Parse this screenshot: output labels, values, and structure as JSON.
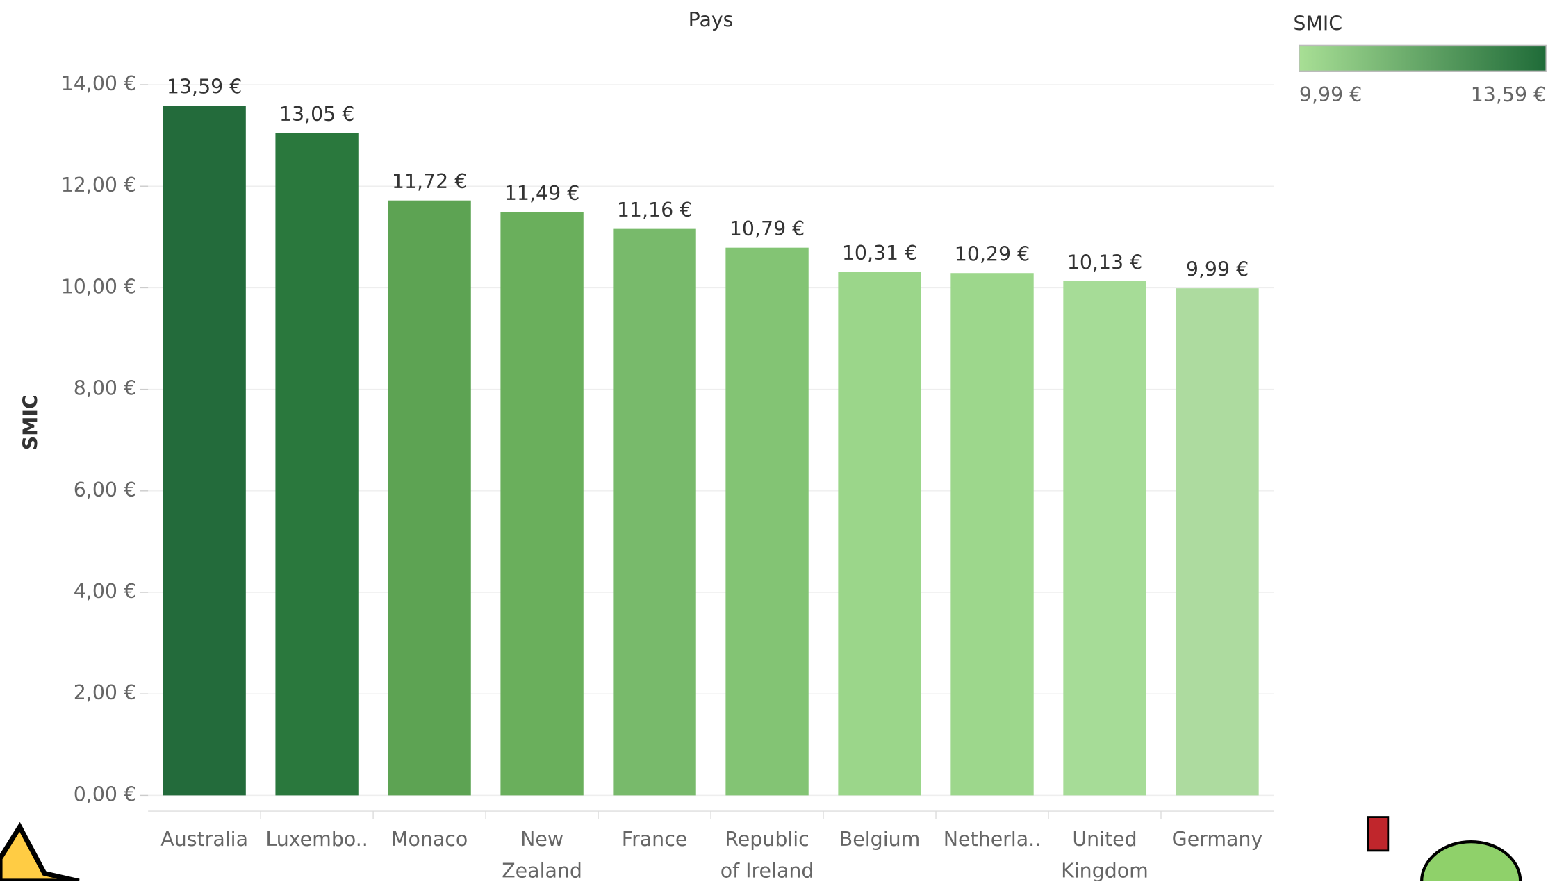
{
  "chart_data": {
    "type": "bar",
    "title": "Pays",
    "y_label": "SMIC",
    "categories": [
      "Australia",
      "Luxembo..",
      "Monaco",
      "New\nZealand",
      "France",
      "Republic\nof Ireland",
      "Belgium",
      "Netherla..",
      "United\nKingdom",
      "Germany"
    ],
    "values": [
      13.59,
      13.05,
      11.72,
      11.49,
      11.16,
      10.79,
      10.31,
      10.29,
      10.13,
      9.99
    ],
    "value_labels": [
      "13,59 €",
      "13,05 €",
      "11,72 €",
      "11,49 €",
      "11,16 €",
      "10,79 €",
      "10,31 €",
      "10,29 €",
      "10,13 €",
      "9,99 €"
    ],
    "colors": [
      "#236b3b",
      "#2a783d",
      "#5da353",
      "#6aaf5c",
      "#78ba6b",
      "#83c474",
      "#9bd68a",
      "#9dd78c",
      "#a6dc97",
      "#addb9f"
    ],
    "ylim": [
      -0.31,
      14.93
    ],
    "yticks": [
      {
        "value": 0,
        "label": "0,00 €"
      },
      {
        "value": 2,
        "label": "2,00 €"
      },
      {
        "value": 4,
        "label": "4,00 €"
      },
      {
        "value": 6,
        "label": "6,00 €"
      },
      {
        "value": 8,
        "label": "8,00 €"
      },
      {
        "value": 10,
        "label": "10,00 €"
      },
      {
        "value": 12,
        "label": "12,00 €"
      },
      {
        "value": 14,
        "label": "14,00 €"
      }
    ],
    "grid": true,
    "legend": {
      "title": "SMIC",
      "min_label": "9,99 €",
      "max_label": "13,59 €",
      "colors": [
        "#a8df95",
        "#1f6b38"
      ]
    }
  }
}
